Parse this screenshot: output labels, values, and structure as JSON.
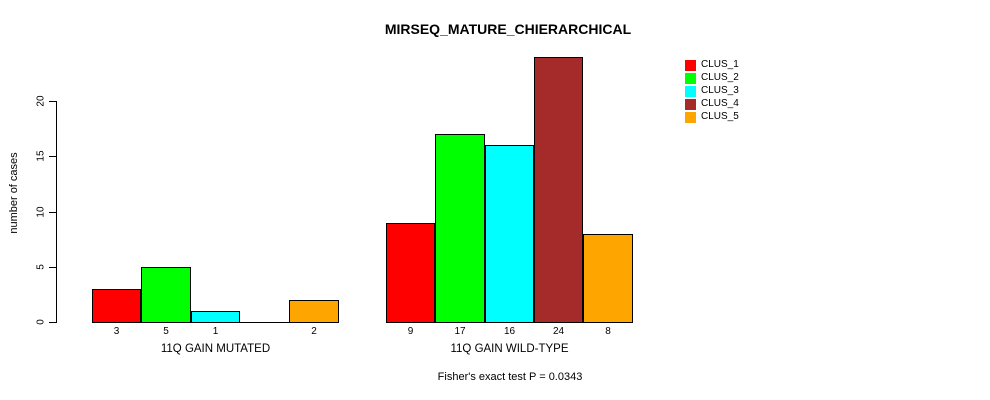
{
  "chart_data": {
    "type": "bar",
    "title": "MIRSEQ_MATURE_CHIERARCHICAL",
    "ylabel": "number of cases",
    "xlabel": "",
    "yticks": [
      0,
      5,
      10,
      15,
      20
    ],
    "ylim": [
      0,
      24
    ],
    "grid": false,
    "legend_position": "right",
    "bar_value_labels_shown": true,
    "categories": [
      "11Q GAIN MUTATED",
      "11Q GAIN WILD-TYPE"
    ],
    "series": [
      {
        "name": "CLUS_1",
        "color": "#ff0000",
        "values": [
          3,
          9
        ]
      },
      {
        "name": "CLUS_2",
        "color": "#00ff00",
        "values": [
          5,
          17
        ]
      },
      {
        "name": "CLUS_3",
        "color": "#00ffff",
        "values": [
          1,
          16
        ]
      },
      {
        "name": "CLUS_4",
        "color": "#a52a2a",
        "values": [
          0,
          24
        ]
      },
      {
        "name": "CLUS_5",
        "color": "#ffa500",
        "values": [
          2,
          8
        ]
      }
    ],
    "footnote": "Fisher's exact test P = 0.0343"
  }
}
